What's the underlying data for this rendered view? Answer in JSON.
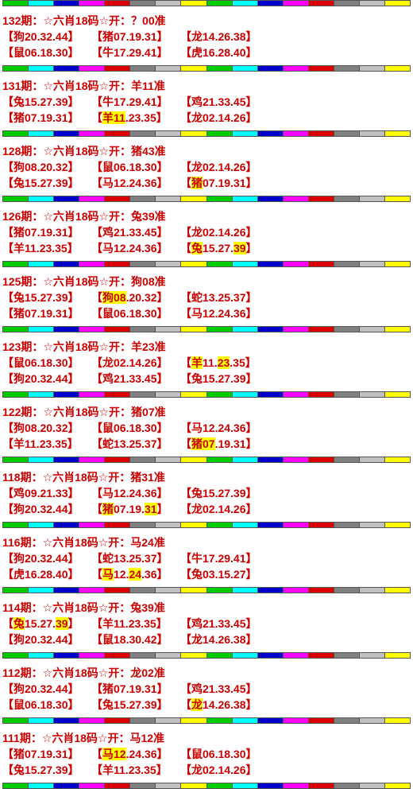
{
  "separator_colors": [
    "#00cc00",
    "#00ffff",
    "#0000cc",
    "#ff00ff",
    "#dd0000",
    "#808080",
    "#c0c0c0",
    "#ffff00",
    "#00cc00",
    "#00ffff",
    "#0000cc",
    "#ff00ff",
    "#dd0000",
    "#808080",
    "#c0c0c0",
    "#ffff00"
  ],
  "highlight_color": "#ffff00",
  "text_color": "#cc0000",
  "periods": [
    {
      "title": "132期：☆六肖18码☆开：？00准",
      "rows": [
        [
          {
            "segs": [
              {
                "t": "【狗20.32.44】"
              }
            ]
          },
          {
            "segs": [
              {
                "t": "【猪07.19.31】"
              }
            ]
          },
          {
            "segs": [
              {
                "t": "【龙14.26.38】"
              }
            ]
          }
        ],
        [
          {
            "segs": [
              {
                "t": "【鼠06.18.30】"
              }
            ]
          },
          {
            "segs": [
              {
                "t": "【牛17.29.41】"
              }
            ]
          },
          {
            "segs": [
              {
                "t": "【虎16.28.40】"
              }
            ]
          }
        ]
      ]
    },
    {
      "title": "131期：☆六肖18码☆开：羊11准",
      "rows": [
        [
          {
            "segs": [
              {
                "t": "【兔15.27.39】"
              }
            ]
          },
          {
            "segs": [
              {
                "t": "【牛17.29.41】"
              }
            ]
          },
          {
            "segs": [
              {
                "t": "【鸡21.33.45】"
              }
            ]
          }
        ],
        [
          {
            "segs": [
              {
                "t": "【猪07.19.31】"
              }
            ]
          },
          {
            "segs": [
              {
                "t": "【"
              },
              {
                "t": "羊11",
                "h": true
              },
              {
                "t": ".23.35】"
              }
            ]
          },
          {
            "segs": [
              {
                "t": "【龙02.14.26】"
              }
            ]
          }
        ]
      ]
    },
    {
      "title": "128期：☆六肖18码☆开：猪43准",
      "rows": [
        [
          {
            "segs": [
              {
                "t": "【狗08.20.32】"
              }
            ]
          },
          {
            "segs": [
              {
                "t": "【鼠06.18.30】"
              }
            ]
          },
          {
            "segs": [
              {
                "t": "【龙02.14.26】"
              }
            ]
          }
        ],
        [
          {
            "segs": [
              {
                "t": "【兔15.27.39】"
              }
            ]
          },
          {
            "segs": [
              {
                "t": "【马12.24.36】"
              }
            ]
          },
          {
            "segs": [
              {
                "t": "【"
              },
              {
                "t": "猪",
                "h": true
              },
              {
                "t": "07.19.31】"
              }
            ]
          }
        ]
      ]
    },
    {
      "title": "126期：☆六肖18码☆开：兔39准",
      "rows": [
        [
          {
            "segs": [
              {
                "t": "【猪07.19.31】"
              }
            ]
          },
          {
            "segs": [
              {
                "t": "【鸡21.33.45】"
              }
            ]
          },
          {
            "segs": [
              {
                "t": "【龙02.14.26】"
              }
            ]
          }
        ],
        [
          {
            "segs": [
              {
                "t": "【羊11.23.35】"
              }
            ]
          },
          {
            "segs": [
              {
                "t": "【马12.24.36】"
              }
            ]
          },
          {
            "segs": [
              {
                "t": "【"
              },
              {
                "t": "兔",
                "h": true
              },
              {
                "t": "15.27."
              },
              {
                "t": "39",
                "h": true
              },
              {
                "t": "】"
              }
            ]
          }
        ]
      ]
    },
    {
      "title": "125期：☆六肖18码☆开：狗08准",
      "rows": [
        [
          {
            "segs": [
              {
                "t": "【兔15.27.39】"
              }
            ]
          },
          {
            "segs": [
              {
                "t": "【"
              },
              {
                "t": "狗08",
                "h": true
              },
              {
                "t": ".20.32】"
              }
            ]
          },
          {
            "segs": [
              {
                "t": "【蛇13.25.37】"
              }
            ]
          }
        ],
        [
          {
            "segs": [
              {
                "t": "【猪07.19.31】"
              }
            ]
          },
          {
            "segs": [
              {
                "t": "【鼠06.18.30】"
              }
            ]
          },
          {
            "segs": [
              {
                "t": "【马12.24.36】"
              }
            ]
          }
        ]
      ]
    },
    {
      "title": "123期：☆六肖18码☆开：羊23准",
      "rows": [
        [
          {
            "segs": [
              {
                "t": "【鼠06.18.30】"
              }
            ]
          },
          {
            "segs": [
              {
                "t": "【龙02.14.26】"
              }
            ]
          },
          {
            "segs": [
              {
                "t": "【"
              },
              {
                "t": "羊",
                "h": true
              },
              {
                "t": "11."
              },
              {
                "t": "23",
                "h": true
              },
              {
                "t": ".35】"
              }
            ]
          }
        ],
        [
          {
            "segs": [
              {
                "t": "【狗20.32.44】"
              }
            ]
          },
          {
            "segs": [
              {
                "t": "【鸡21.33.45】"
              }
            ]
          },
          {
            "segs": [
              {
                "t": "【兔15.27.39】"
              }
            ]
          }
        ]
      ]
    },
    {
      "title": "122期：☆六肖18码☆开：猪07准",
      "rows": [
        [
          {
            "segs": [
              {
                "t": "【狗08.20.32】"
              }
            ]
          },
          {
            "segs": [
              {
                "t": "【鼠06.18.30】"
              }
            ]
          },
          {
            "segs": [
              {
                "t": "【马12.24.36】"
              }
            ]
          }
        ],
        [
          {
            "segs": [
              {
                "t": "【羊11.23.35】"
              }
            ]
          },
          {
            "segs": [
              {
                "t": "【蛇13.25.37】"
              }
            ]
          },
          {
            "segs": [
              {
                "t": "【"
              },
              {
                "t": "猪07",
                "h": true
              },
              {
                "t": ".19.31】"
              }
            ]
          }
        ]
      ]
    },
    {
      "title": "118期：☆六肖18码☆开：猪31准",
      "rows": [
        [
          {
            "segs": [
              {
                "t": "【鸡09.21.33】"
              }
            ]
          },
          {
            "segs": [
              {
                "t": "【马12.24.36】"
              }
            ]
          },
          {
            "segs": [
              {
                "t": "【兔15.27.39】"
              }
            ]
          }
        ],
        [
          {
            "segs": [
              {
                "t": "【狗20.32.44】"
              }
            ]
          },
          {
            "segs": [
              {
                "t": "【"
              },
              {
                "t": "猪",
                "h": true
              },
              {
                "t": "07.19."
              },
              {
                "t": "31",
                "h": true
              },
              {
                "t": "】"
              }
            ]
          },
          {
            "segs": [
              {
                "t": "【龙02.14.26】"
              }
            ]
          }
        ]
      ]
    },
    {
      "title": "116期：☆六肖18码☆开：马24准",
      "rows": [
        [
          {
            "segs": [
              {
                "t": "【狗20.32.44】"
              }
            ]
          },
          {
            "segs": [
              {
                "t": "【蛇13.25.37】"
              }
            ]
          },
          {
            "segs": [
              {
                "t": "【牛17.29.41】"
              }
            ]
          }
        ],
        [
          {
            "segs": [
              {
                "t": "【虎16.28.40】"
              }
            ]
          },
          {
            "segs": [
              {
                "t": "【"
              },
              {
                "t": "马",
                "h": true
              },
              {
                "t": "12."
              },
              {
                "t": "24",
                "h": true
              },
              {
                "t": ".36】"
              }
            ]
          },
          {
            "segs": [
              {
                "t": "【兔03.15.27】"
              }
            ]
          }
        ]
      ]
    },
    {
      "title": "114期：☆六肖18码☆开：兔39准",
      "rows": [
        [
          {
            "segs": [
              {
                "t": "【"
              },
              {
                "t": "兔",
                "h": true
              },
              {
                "t": "15.27."
              },
              {
                "t": "39",
                "h": true
              },
              {
                "t": "】"
              }
            ]
          },
          {
            "segs": [
              {
                "t": "【羊11.23.35】"
              }
            ]
          },
          {
            "segs": [
              {
                "t": "【鸡21.33.45】"
              }
            ]
          }
        ],
        [
          {
            "segs": [
              {
                "t": "【狗20.32.44】"
              }
            ]
          },
          {
            "segs": [
              {
                "t": "【鼠18.30.42】"
              }
            ]
          },
          {
            "segs": [
              {
                "t": "【龙14.26.38】"
              }
            ]
          }
        ]
      ]
    },
    {
      "title": "112期：☆六肖18码☆开：龙02准",
      "rows": [
        [
          {
            "segs": [
              {
                "t": "【狗20.32.44】"
              }
            ]
          },
          {
            "segs": [
              {
                "t": "【猪07.19.31】"
              }
            ]
          },
          {
            "segs": [
              {
                "t": "【鸡21.33.45】"
              }
            ]
          }
        ],
        [
          {
            "segs": [
              {
                "t": "【鼠06.18.30】"
              }
            ]
          },
          {
            "segs": [
              {
                "t": "【兔15.27.39】"
              }
            ]
          },
          {
            "segs": [
              {
                "t": "【"
              },
              {
                "t": "龙",
                "h": true
              },
              {
                "t": "14.26.38】"
              }
            ]
          }
        ]
      ]
    },
    {
      "title": "111期：☆六肖18码☆开：马12准",
      "rows": [
        [
          {
            "segs": [
              {
                "t": "【猪07.19.31】"
              }
            ]
          },
          {
            "segs": [
              {
                "t": "【"
              },
              {
                "t": "马12",
                "h": true
              },
              {
                "t": ".24.36】"
              }
            ]
          },
          {
            "segs": [
              {
                "t": "【鼠06.18.30】"
              }
            ]
          }
        ],
        [
          {
            "segs": [
              {
                "t": "【兔15.27.39】"
              }
            ]
          },
          {
            "segs": [
              {
                "t": "【羊11.23.35】"
              }
            ]
          },
          {
            "segs": [
              {
                "t": "【龙02.14.26】"
              }
            ]
          }
        ]
      ]
    }
  ]
}
